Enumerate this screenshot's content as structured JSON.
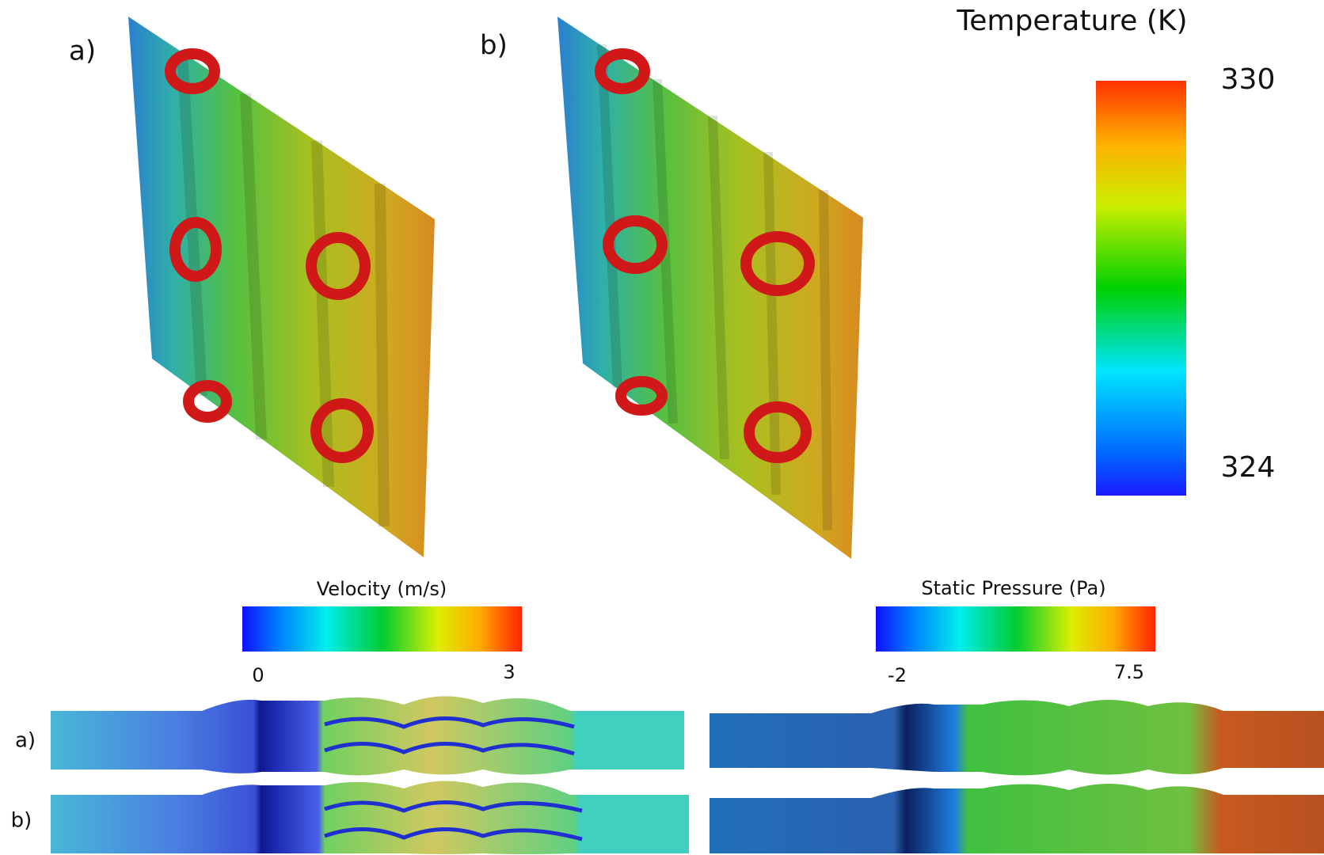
{
  "panels": [
    {
      "label": "a)"
    },
    {
      "label": "b)"
    }
  ],
  "temperature_legend": {
    "title": "Temperature (K)",
    "max": 330,
    "min": 324
  },
  "velocity_legend": {
    "title": "Velocity (m/s)",
    "min": 0,
    "max": 3
  },
  "pressure_legend": {
    "title": "Static Pressure (Pa)",
    "min": -2,
    "max": 7.5
  },
  "channel_rows": [
    {
      "label": "a)"
    },
    {
      "label": "b)"
    }
  ]
}
